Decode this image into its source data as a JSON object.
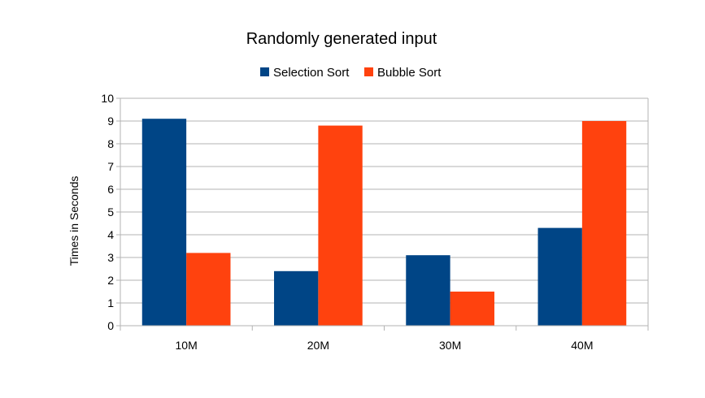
{
  "chart_data": {
    "type": "bar",
    "title": "Randomly generated input",
    "xlabel": "",
    "ylabel": "Times in Seconds",
    "categories": [
      "10M",
      "20M",
      "30M",
      "40M"
    ],
    "series": [
      {
        "name": "Selection Sort",
        "color": "#004586",
        "values": [
          9.1,
          2.4,
          3.1,
          4.3
        ]
      },
      {
        "name": "Bubble Sort",
        "color": "#ff420e",
        "values": [
          3.2,
          8.8,
          1.5,
          9.0
        ]
      }
    ],
    "ylim": [
      0,
      10
    ],
    "yticks": [
      "0",
      "1",
      "2",
      "3",
      "4",
      "5",
      "6",
      "7",
      "8",
      "9",
      "10"
    ],
    "grid": true,
    "legend_position": "top-center"
  }
}
